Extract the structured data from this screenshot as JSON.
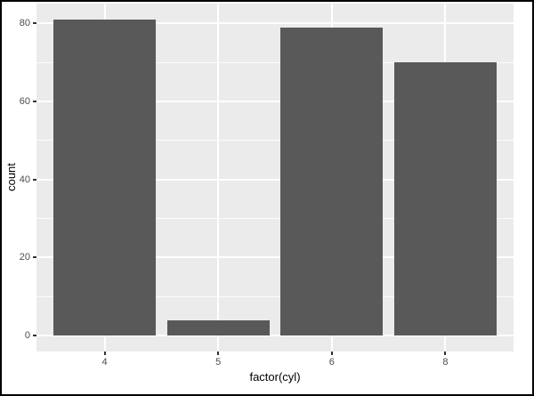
{
  "chart_data": {
    "type": "bar",
    "categories": [
      "4",
      "5",
      "6",
      "8"
    ],
    "values": [
      81,
      4,
      79,
      70
    ],
    "title": "",
    "xlabel": "factor(cyl)",
    "ylabel": "count",
    "ylim": [
      0,
      85
    ],
    "yticks": [
      0,
      20,
      40,
      60,
      80
    ],
    "yticks_minor": [
      10,
      30,
      50,
      70
    ],
    "bar_rel_width": 0.9,
    "grid": "on",
    "legend": "none",
    "colors": {
      "bar_fill": "#595959",
      "panel_background": "#ebebeb",
      "gridline": "#ffffff",
      "tick_label": "#4d4d4d",
      "tick_mark": "#333333",
      "axis_title": "#000000",
      "figure_background": "#ffffff",
      "figure_border": "#000000"
    }
  }
}
